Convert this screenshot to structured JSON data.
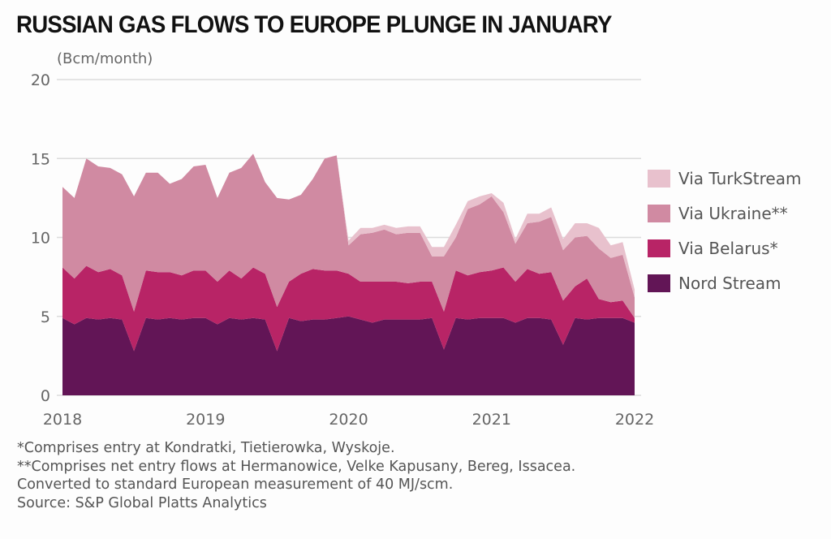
{
  "chart_data": {
    "type": "area",
    "stacked": true,
    "title": "RUSSIAN GAS FLOWS TO EUROPE PLUNGE IN JANUARY",
    "ylabel": "(Bcm/month)",
    "xlabel": "",
    "ylim": [
      0,
      20
    ],
    "yticks": [
      "0",
      "5",
      "10",
      "15",
      "20"
    ],
    "xticks": [
      "2018",
      "2019",
      "2020",
      "2021",
      "2022"
    ],
    "xlim": [
      2018,
      2022
    ],
    "x_start": "2018-01",
    "frequency": "monthly",
    "grid": true,
    "legend_position": "right",
    "series": [
      {
        "name": "Nord Stream",
        "color": "#621556",
        "values": [
          4.9,
          4.5,
          4.9,
          4.8,
          4.9,
          4.8,
          2.8,
          4.9,
          4.8,
          4.9,
          4.8,
          4.9,
          4.9,
          4.5,
          4.9,
          4.8,
          4.9,
          4.8,
          2.8,
          4.9,
          4.7,
          4.8,
          4.8,
          4.9,
          5.0,
          4.8,
          4.6,
          4.8,
          4.8,
          4.8,
          4.8,
          4.9,
          2.9,
          4.9,
          4.8,
          4.9,
          4.9,
          4.9,
          4.6,
          4.9,
          4.9,
          4.8,
          3.2,
          4.9,
          4.8,
          4.9,
          4.9,
          4.9,
          4.6
        ]
      },
      {
        "name": "Via Belarus*",
        "color": "#b82466",
        "values": [
          3.2,
          2.9,
          3.3,
          3.0,
          3.1,
          2.8,
          2.5,
          3.0,
          3.0,
          2.9,
          2.8,
          3.0,
          3.0,
          2.7,
          3.0,
          2.6,
          3.2,
          2.9,
          2.8,
          2.3,
          3.0,
          3.2,
          3.1,
          3.0,
          2.7,
          2.4,
          2.6,
          2.4,
          2.4,
          2.3,
          2.4,
          2.3,
          2.4,
          3.0,
          2.8,
          2.9,
          3.0,
          3.2,
          2.6,
          3.1,
          2.8,
          3.0,
          2.8,
          2.0,
          2.6,
          1.2,
          1.0,
          1.1,
          0.3
        ]
      },
      {
        "name": "Via Ukraine**",
        "color": "#d08aa2",
        "values": [
          5.1,
          5.1,
          6.8,
          6.7,
          6.4,
          6.4,
          7.3,
          6.2,
          6.3,
          5.6,
          6.1,
          6.6,
          6.7,
          5.3,
          6.2,
          7.0,
          7.2,
          5.8,
          6.9,
          5.2,
          5.0,
          5.7,
          7.1,
          7.3,
          1.8,
          3.0,
          3.1,
          3.3,
          3.0,
          3.2,
          3.1,
          1.6,
          3.5,
          2.1,
          4.2,
          4.3,
          4.7,
          3.5,
          2.4,
          2.9,
          3.3,
          3.5,
          3.2,
          3.1,
          2.7,
          3.2,
          2.8,
          2.9,
          1.3
        ]
      },
      {
        "name": "Via TurkStream",
        "color": "#e8c1cd",
        "values": [
          0,
          0,
          0,
          0,
          0,
          0,
          0,
          0,
          0,
          0,
          0,
          0,
          0,
          0,
          0,
          0,
          0,
          0,
          0,
          0,
          0,
          0,
          0,
          0,
          0.3,
          0.4,
          0.3,
          0.3,
          0.4,
          0.4,
          0.4,
          0.6,
          0.6,
          0.8,
          0.5,
          0.5,
          0.2,
          0.6,
          0.3,
          0.6,
          0.5,
          0.6,
          0.7,
          0.9,
          0.8,
          1.3,
          0.8,
          0.8,
          0.5
        ]
      }
    ]
  },
  "footnotes": [
    "*Comprises entry at Kondratki, Tietierowka, Wyskoje.",
    "**Comprises net entry flows at Hermanowice, Velke Kapusany, Bereg, Issacea.",
    "Converted to standard European measurement of 40 MJ/scm.",
    "Source: S&P Global Platts Analytics"
  ]
}
